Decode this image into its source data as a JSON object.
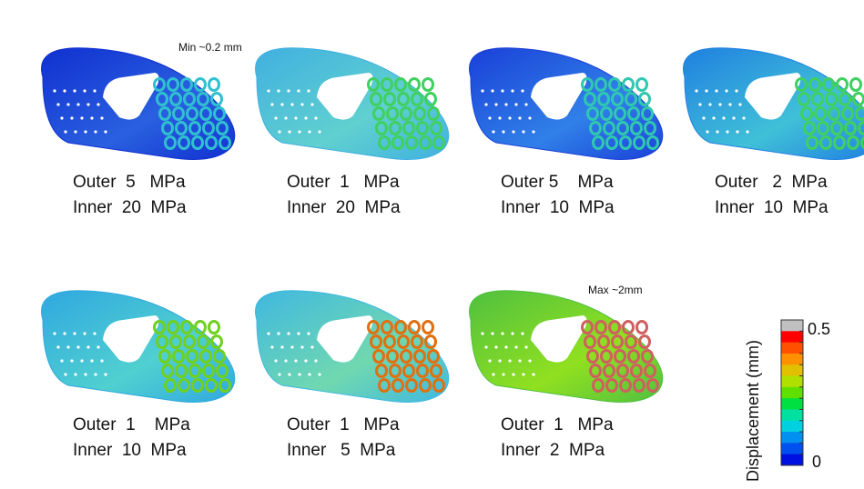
{
  "annotations": {
    "min": "Min ~0.2 mm",
    "max": "Max ~2mm"
  },
  "panels": [
    {
      "outer": "Outer  5   MPa",
      "inner": "Inner  20  MPa",
      "colors": [
        "#1030d0",
        "#2a60e0",
        "#30c0d0"
      ]
    },
    {
      "outer": "Outer  1   MPa",
      "inner": "Inner  20  MPa",
      "colors": [
        "#40b0e0",
        "#60d0d0",
        "#40d060"
      ]
    },
    {
      "outer": "Outer 5    MPa",
      "inner": "Inner  10  MPa",
      "colors": [
        "#1a40d8",
        "#3080e8",
        "#30c8b0"
      ]
    },
    {
      "outer": "Outer   2  MPa",
      "inner": "Inner  10  MPa",
      "colors": [
        "#2080e0",
        "#40c0d8",
        "#40d060"
      ]
    },
    {
      "outer": "Outer  1    MPa",
      "inner": "Inner  10  MPa",
      "colors": [
        "#30a8e0",
        "#50d0d0",
        "#70d020"
      ]
    },
    {
      "outer": "Outer  1   MPa",
      "inner": "Inner   5  MPa",
      "colors": [
        "#40b8e0",
        "#70d8b0",
        "#e07010"
      ]
    },
    {
      "outer": "Outer  1   MPa",
      "inner": "Inner  2  MPa",
      "colors": [
        "#50c040",
        "#90e020",
        "#d06060"
      ]
    }
  ],
  "colorbar": {
    "label": "Displacement (mm)",
    "ticks": [
      "0.5",
      "0"
    ],
    "colors": [
      "#c0c0c0",
      "#ff0000",
      "#ff5000",
      "#ff9000",
      "#e0c000",
      "#b0e000",
      "#60e000",
      "#00e040",
      "#00e0a0",
      "#00d0e0",
      "#0090f0",
      "#0050f0",
      "#0010e0"
    ]
  }
}
